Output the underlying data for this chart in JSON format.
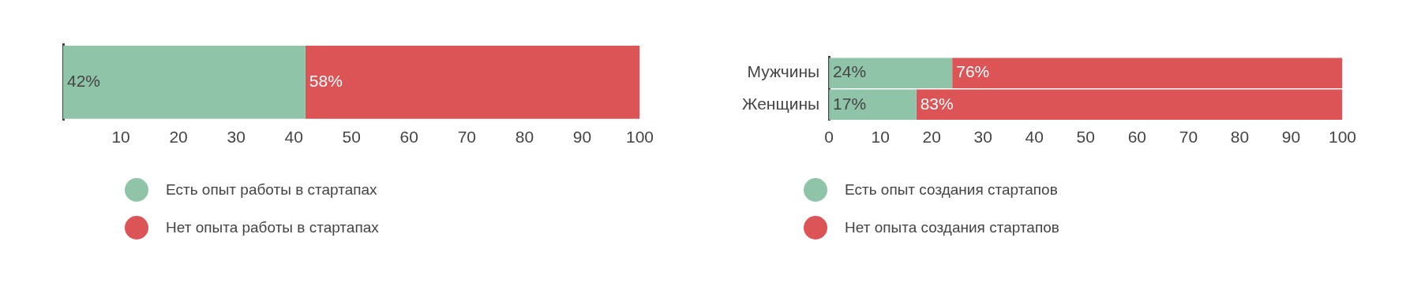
{
  "chart_data": [
    {
      "type": "bar",
      "orientation": "horizontal",
      "stacked": true,
      "categories": [
        null
      ],
      "xlim": [
        0,
        100
      ],
      "xticks": [
        10,
        20,
        30,
        40,
        50,
        60,
        70,
        80,
        90,
        100
      ],
      "tick_labels": "x",
      "grid": false,
      "legend": "bottom",
      "series": [
        {
          "name": "Есть опыт работы в стартапах",
          "color": "#8fc4a9",
          "values": [
            42
          ],
          "value_labels": [
            "42%"
          ]
        },
        {
          "name": "Нет опыта работы в стартапах",
          "color": "#dc5456",
          "values": [
            58
          ],
          "value_labels": [
            "58%"
          ]
        }
      ]
    },
    {
      "type": "bar",
      "orientation": "horizontal",
      "stacked": true,
      "categories": [
        "Мужчины",
        "Женщины"
      ],
      "xlim": [
        0,
        100
      ],
      "xticks": [
        0,
        10,
        20,
        30,
        40,
        50,
        60,
        70,
        80,
        90,
        100
      ],
      "grid": false,
      "legend": "bottom",
      "series": [
        {
          "name": "Есть опыт создания стартапов",
          "color": "#8fc4a9",
          "values": [
            24,
            17
          ],
          "value_labels": [
            "24%",
            "17%"
          ]
        },
        {
          "name": "Нет опыта создания стартапов",
          "color": "#dc5456",
          "values": [
            76,
            83
          ],
          "value_labels": [
            "76%",
            "83%"
          ]
        }
      ]
    }
  ]
}
